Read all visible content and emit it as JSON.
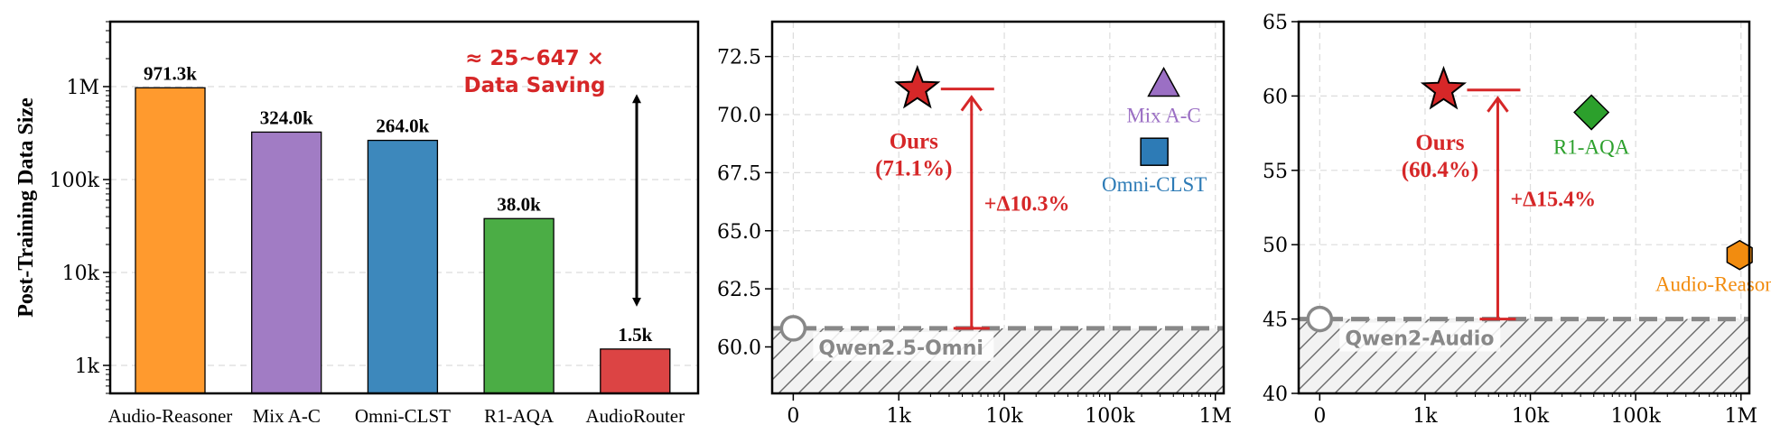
{
  "chart_data": [
    {
      "type": "bar",
      "ylabel": "Post-Training Data Size",
      "yscale": "log",
      "ylim": [
        500,
        5000000
      ],
      "ytick_values": [
        1000,
        10000,
        100000,
        1000000
      ],
      "ytick_labels": [
        "1k",
        "10k",
        "100k",
        "1M"
      ],
      "categories": [
        "Audio-Reasoner",
        "Mix A-C",
        "Omni-CLST",
        "R1-AQA",
        "AudioRouter"
      ],
      "values": [
        971300,
        324000,
        264000,
        38000,
        1500
      ],
      "value_labels": [
        "971.3k",
        "324.0k",
        "264.0k",
        "38.0k",
        "1.5k"
      ],
      "colors": [
        "#ff9a2e",
        "#a17cc4",
        "#3d88bc",
        "#4bad45",
        "#dc4444"
      ],
      "annotation": {
        "line1": "≈ 25~647 ×",
        "line2": "Data Saving"
      },
      "grid": true
    },
    {
      "type": "scatter",
      "xscale": "symlog",
      "xlim": [
        -200,
        1200000
      ],
      "ylim": [
        58,
        74
      ],
      "xtick_values": [
        0,
        1000,
        10000,
        100000,
        1000000
      ],
      "xtick_labels": [
        "0",
        "1k",
        "10k",
        "100k",
        "1M"
      ],
      "ytick_values": [
        60,
        62.5,
        65,
        67.5,
        70,
        72.5
      ],
      "ytick_labels": [
        "60.0",
        "62.5",
        "65.0",
        "67.5",
        "70.0",
        "72.5"
      ],
      "points": [
        {
          "label": "Mix A-C",
          "x": 324000,
          "y": 71.3,
          "marker": "triangle",
          "color": "#9b6fc4"
        },
        {
          "label": "Omni-CLST",
          "x": 264000,
          "y": 68.4,
          "marker": "square",
          "color": "#2d7bb6"
        },
        {
          "label": "",
          "x": 1500,
          "y": 71.1,
          "marker": "star",
          "color": "#d62728"
        }
      ],
      "ours": {
        "line1": "Ours",
        "line2": "(71.1%)"
      },
      "baseline": {
        "label": "Qwen2.5-Omni",
        "x": 0,
        "y": 60.8
      },
      "improvement": {
        "label": "+Δ10.3%",
        "from_y": 60.8,
        "to_y": 71.1
      },
      "grid": true
    },
    {
      "type": "scatter",
      "xscale": "symlog",
      "xlim": [
        -200,
        1200000
      ],
      "ylim": [
        40,
        65
      ],
      "xtick_values": [
        0,
        1000,
        10000,
        100000,
        1000000
      ],
      "xtick_labels": [
        "0",
        "1k",
        "10k",
        "100k",
        "1M"
      ],
      "ytick_values": [
        40,
        45,
        50,
        55,
        60,
        65
      ],
      "ytick_labels": [
        "40",
        "45",
        "50",
        "55",
        "60",
        "65"
      ],
      "points": [
        {
          "label": "R1-AQA",
          "x": 38000,
          "y": 58.9,
          "marker": "diamond",
          "color": "#2ca02c"
        },
        {
          "label": "Audio-Reasoner",
          "x": 971300,
          "y": 49.3,
          "marker": "hexagon",
          "color": "#f28c0f"
        },
        {
          "label": "",
          "x": 1500,
          "y": 60.4,
          "marker": "star",
          "color": "#d62728"
        }
      ],
      "ours": {
        "line1": "Ours",
        "line2": "(60.4%)"
      },
      "baseline": {
        "label": "Qwen2-Audio",
        "x": 0,
        "y": 45.0
      },
      "improvement": {
        "label": "+Δ15.4%",
        "from_y": 45.0,
        "to_y": 60.4
      },
      "grid": true
    }
  ]
}
